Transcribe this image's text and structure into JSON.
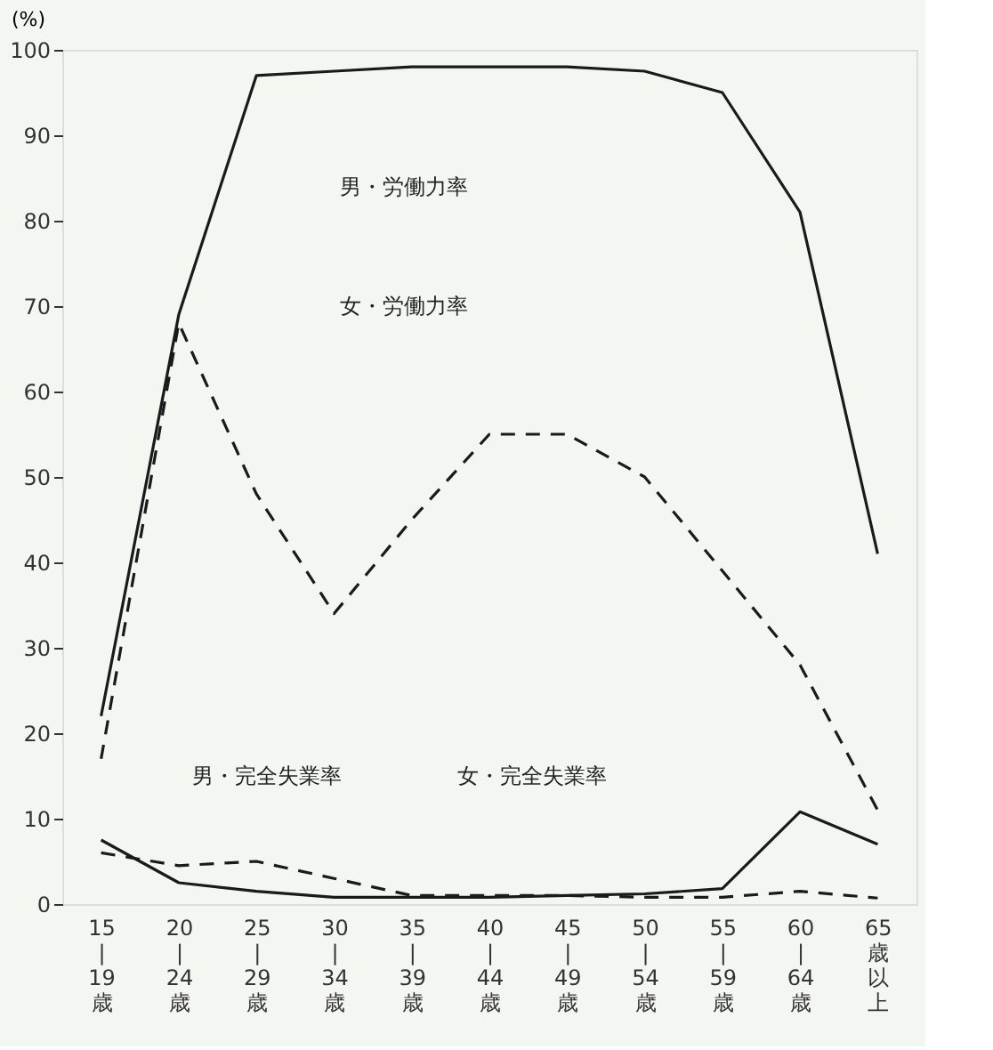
{
  "chart_data": {
    "type": "line",
    "ylabel": "(%)",
    "categories": [
      "15\n|\n19\n歳",
      "20\n|\n24\n歳",
      "25\n|\n29\n歳",
      "30\n|\n34\n歳",
      "35\n|\n39\n歳",
      "40\n|\n44\n歳",
      "45\n|\n49\n歳",
      "50\n|\n54\n歳",
      "55\n|\n59\n歳",
      "60\n|\n64\n歳",
      "65\n歳以上"
    ],
    "series": [
      {
        "color": "#1a1a1a",
        "line_style": "solid",
        "values": [
          22,
          69,
          97,
          97.5,
          98,
          98,
          98,
          97.5,
          95,
          81,
          41
        ]
      },
      {
        "color": "#1a1a1a",
        "line_style": "dashed",
        "values": [
          17,
          68,
          48,
          34,
          45,
          55,
          55,
          50,
          39,
          28,
          11
        ]
      },
      {
        "color": "#1a1a1a",
        "line_style": "solid",
        "values": [
          7.5,
          2.5,
          1.5,
          0.8,
          0.8,
          0.8,
          1,
          1.2,
          1.8,
          10.8,
          7
        ]
      },
      {
        "color": "#1a1a1a",
        "line_style": "dashed",
        "values": [
          6,
          4.5,
          5,
          3,
          1,
          1,
          1,
          0.8,
          0.8,
          1.5,
          0.7
        ]
      }
    ],
    "annotations": [
      "男・労働力率",
      "女・労働力率",
      "男・完全失業率",
      "女・完全失業率"
    ],
    "ylim": [
      0,
      100
    ],
    "yticks": [
      0,
      10,
      20,
      30,
      40,
      50,
      60,
      70,
      80,
      90,
      100
    ],
    "grid": false,
    "marker": "none"
  }
}
